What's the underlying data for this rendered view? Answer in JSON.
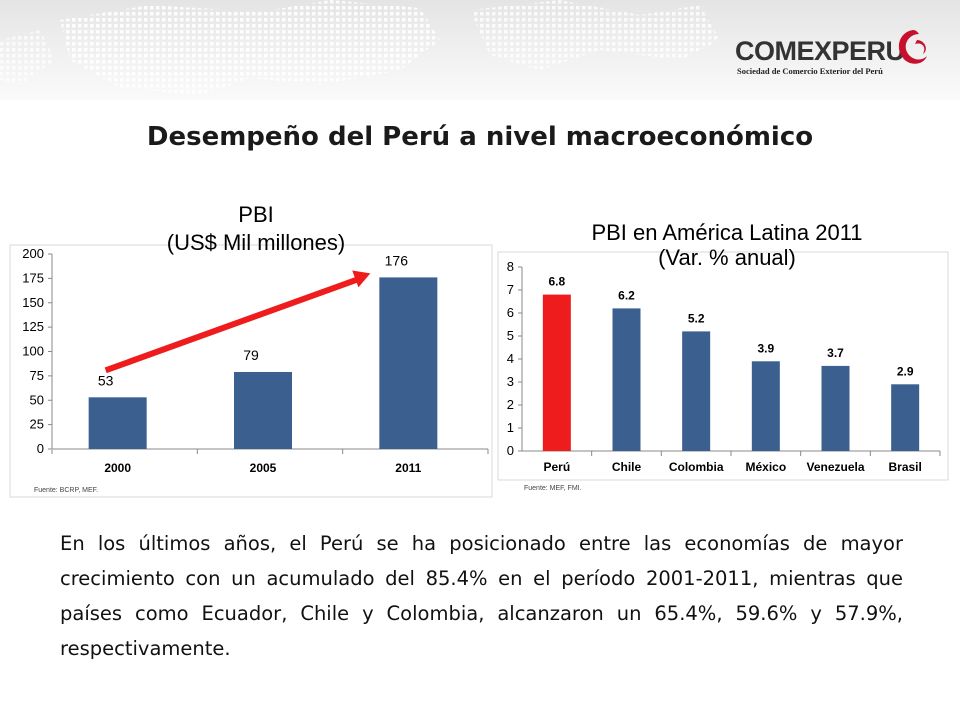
{
  "logo": {
    "name": "COMEXPERU",
    "subtitle": "Sociedad de Comercio Exterior del Perú"
  },
  "title": "Desempeño del Perú a nivel macroeconómico",
  "chart_data": [
    {
      "type": "bar",
      "title_line1": "PBI",
      "title_line2": "(US$ Mil millones)",
      "categories": [
        "2000",
        "2005",
        "2011"
      ],
      "values": [
        53,
        79,
        176
      ],
      "ylim": [
        0,
        200
      ],
      "yticks": [
        "0",
        "25",
        "50",
        "75",
        "100",
        "125",
        "150",
        "175",
        "200"
      ],
      "bar_color": "#3b5f8f",
      "arrow_color": "#ee1c1c",
      "source": "Fuente: BCRP, MEF."
    },
    {
      "type": "bar",
      "title_line1": "PBI en América Latina 2011",
      "title_line2": "(Var. % anual)",
      "categories": [
        "Perú",
        "Chile",
        "Colombia",
        "México",
        "Venezuela",
        "Brasil"
      ],
      "values": [
        6.8,
        6.2,
        5.2,
        3.9,
        3.7,
        2.9
      ],
      "value_labels": [
        "6.8",
        "6.2",
        "5.2",
        "3.9",
        "3.7",
        "2.9"
      ],
      "ylim": [
        0,
        8
      ],
      "yticks": [
        "0",
        "1",
        "2",
        "3",
        "4",
        "5",
        "6",
        "7",
        "8"
      ],
      "bar_color": "#3b5f8f",
      "highlight_color": "#ee1c1c",
      "source": "Fuente: MEF, FMI."
    }
  ],
  "body_text": "En los últimos años, el Perú se ha posicionado entre las economías de mayor crecimiento con un acumulado del 85.4% en el período 2001-2011, mientras que países como Ecuador, Chile y Colombia, alcanzaron un 65.4%, 59.6% y 57.9%, respectivamente."
}
